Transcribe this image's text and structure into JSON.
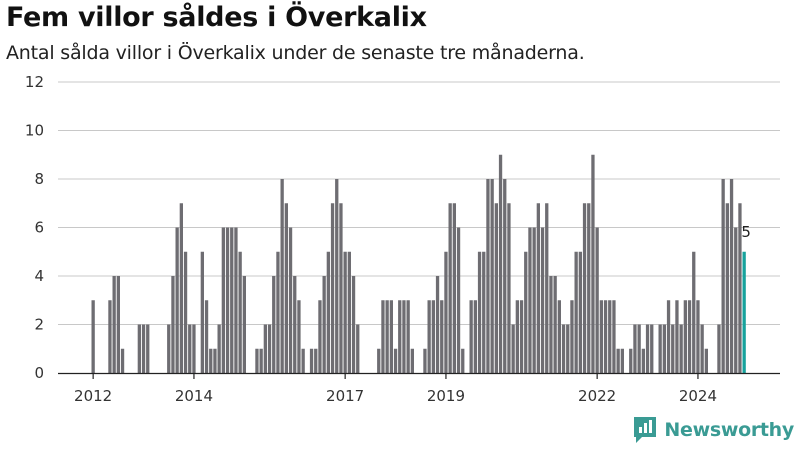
{
  "header": {
    "title": "Fem villor såldes i Överkalix",
    "subtitle": "Antal sålda villor i Överkalix under de senaste tre månaderna."
  },
  "brand": {
    "name": "Newsworthy",
    "icon": "newsworthy-logo-icon",
    "color": "#3a9b94"
  },
  "colors": {
    "bar": "#6e6d72",
    "highlight": "#17a29c",
    "grid": "#c8c8c8",
    "axis": "#222222"
  },
  "chart_data": {
    "type": "bar",
    "title": "Fem villor såldes i Överkalix",
    "subtitle": "Antal sålda villor i Överkalix under de senaste tre månaderna.",
    "xlabel": "",
    "ylabel": "",
    "ylim": [
      0,
      12
    ],
    "yticks": [
      0,
      2,
      4,
      6,
      8,
      10,
      12
    ],
    "xticks": [
      "2012",
      "2014",
      "2017",
      "2019",
      "2022",
      "2024"
    ],
    "xtick_indices": [
      0,
      24,
      60,
      84,
      120,
      144
    ],
    "grid": true,
    "highlight_label": "5",
    "highlight_index": 155,
    "values": [
      3,
      0,
      0,
      0,
      3,
      4,
      4,
      1,
      0,
      0,
      0,
      2,
      2,
      2,
      0,
      0,
      0,
      0,
      2,
      4,
      6,
      7,
      5,
      2,
      2,
      0,
      5,
      3,
      1,
      1,
      2,
      6,
      6,
      6,
      6,
      5,
      4,
      0,
      0,
      1,
      1,
      2,
      2,
      4,
      5,
      8,
      7,
      6,
      4,
      3,
      1,
      0,
      1,
      1,
      3,
      4,
      5,
      7,
      8,
      7,
      5,
      5,
      4,
      2,
      0,
      0,
      0,
      0,
      1,
      3,
      3,
      3,
      1,
      3,
      3,
      3,
      1,
      0,
      0,
      1,
      3,
      3,
      4,
      3,
      5,
      7,
      7,
      6,
      1,
      0,
      3,
      3,
      5,
      5,
      8,
      8,
      7,
      9,
      8,
      7,
      2,
      3,
      3,
      5,
      6,
      6,
      7,
      6,
      7,
      4,
      4,
      3,
      2,
      2,
      3,
      5,
      5,
      7,
      7,
      9,
      6,
      3,
      3,
      3,
      3,
      1,
      1,
      0,
      1,
      2,
      2,
      1,
      2,
      2,
      0,
      2,
      2,
      3,
      2,
      3,
      2,
      3,
      3,
      5,
      3,
      2,
      1,
      0,
      0,
      2,
      8,
      7,
      8,
      6,
      7,
      5
    ]
  }
}
